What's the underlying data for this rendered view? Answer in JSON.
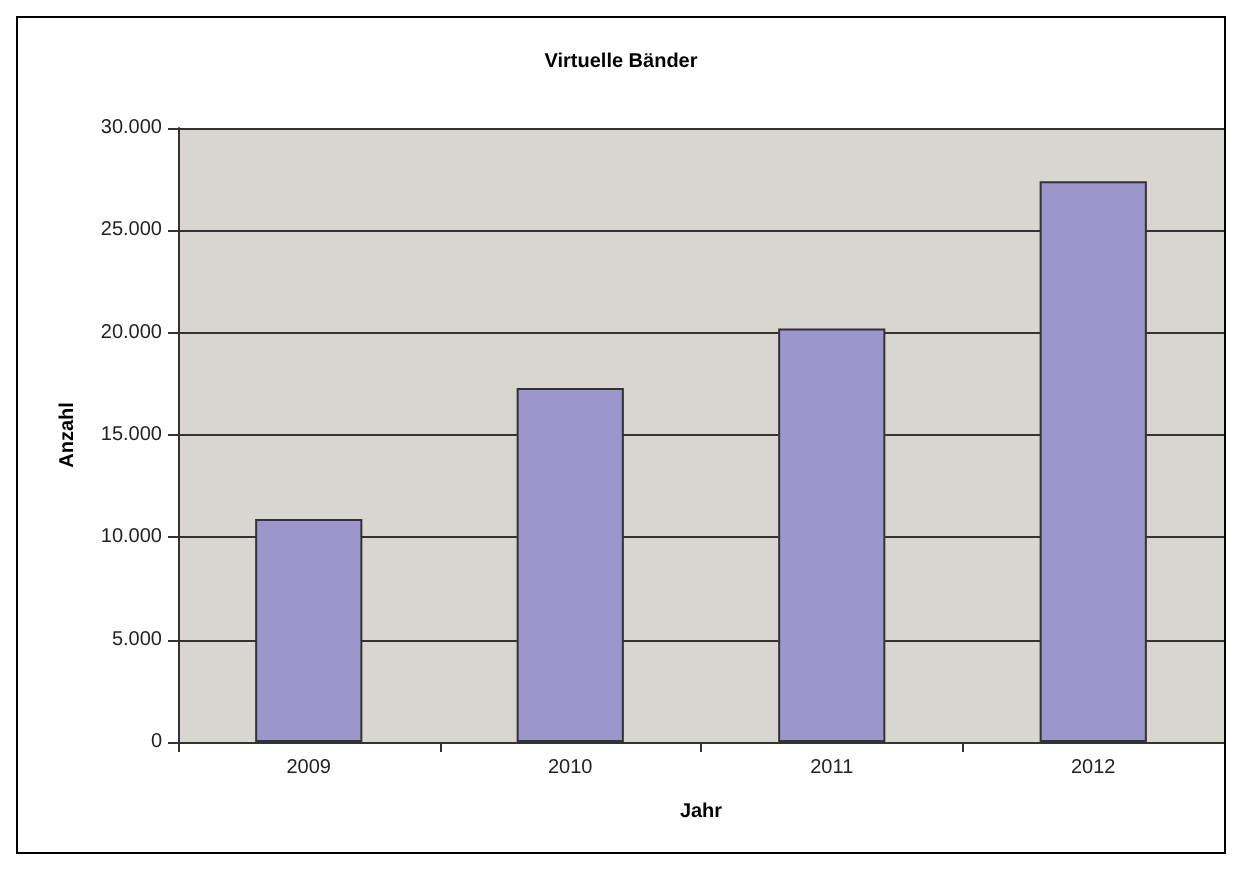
{
  "chart_data": {
    "type": "bar",
    "title": "Virtuelle Bänder",
    "xlabel": "Jahr",
    "ylabel": "Anzahl",
    "categories": [
      "2009",
      "2010",
      "2011",
      "2012"
    ],
    "values": [
      10900,
      17300,
      20200,
      27400
    ],
    "color": "#9b97cc",
    "ylim": [
      0,
      30000
    ],
    "yticks": [
      0,
      {
        "value": 5000,
        "label": "5.000"
      },
      {
        "value": 10000,
        "label": "10.000"
      },
      {
        "value": 15000,
        "label": "15.000"
      },
      {
        "value": 20000,
        "label": "20.000"
      },
      {
        "value": 25000,
        "label": "25.000"
      },
      {
        "value": 30000,
        "label": "30.000"
      }
    ],
    "grid": "y"
  }
}
